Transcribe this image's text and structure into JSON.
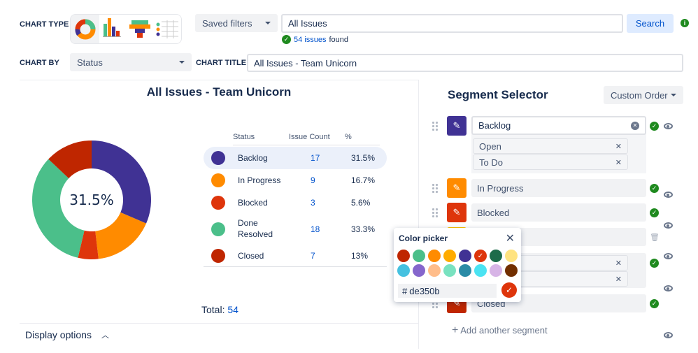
{
  "toolbar": {
    "chart_type_label": "CHART TYPE",
    "chart_by_label": "CHART BY",
    "chart_by_value": "Status",
    "chart_title_label": "CHART TITLE",
    "chart_title_value": "All Issues - Team Unicorn",
    "saved_filters": "Saved filters",
    "query": "All Issues",
    "search": "Search",
    "found_count": "54 issues",
    "found_suffix": "found",
    "chart_types": [
      "donut",
      "bar",
      "funnel",
      "table"
    ]
  },
  "chart": {
    "title": "All Issues - Team Unicorn",
    "center_label": "31.5%",
    "total_label": "Total:",
    "total_value": "54",
    "headers": [
      "Status",
      "Issue Count",
      "%"
    ],
    "rows": [
      {
        "status": "Backlog",
        "count": "17",
        "pct": "31.5%",
        "color": "#403294"
      },
      {
        "status": "In Progress",
        "count": "9",
        "pct": "16.7%",
        "color": "#ff8b00"
      },
      {
        "status": "Blocked",
        "count": "3",
        "pct": "5.6%",
        "color": "#de350b"
      },
      {
        "status": "Done",
        "status2": "Resolved",
        "count": "18",
        "pct": "33.3%",
        "color": "#4bbf8a"
      },
      {
        "status": "Closed",
        "count": "7",
        "pct": "13%",
        "color": "#bf2600"
      }
    ]
  },
  "chart_data": {
    "type": "pie",
    "title": "All Issues - Team Unicorn",
    "categories": [
      "Backlog",
      "In Progress",
      "Blocked",
      "Done / Resolved",
      "Closed"
    ],
    "values": [
      17,
      9,
      3,
      18,
      7
    ],
    "colors": [
      "#403294",
      "#ff8b00",
      "#de350b",
      "#4bbf8a",
      "#bf2600"
    ]
  },
  "display_options": "Display options",
  "segments": {
    "title": "Segment Selector",
    "order": "Custom Order",
    "add": "Add another segment",
    "items": [
      {
        "label": "Backlog",
        "color": "#403294",
        "chips": [
          "Open",
          "To Do"
        ]
      },
      {
        "label": "In Progress",
        "color": "#ff8b00"
      },
      {
        "label": "Blocked",
        "color": "#de350b"
      },
      {
        "label": "",
        "color": "#ffc400"
      },
      {
        "label": "",
        "color": "#4bbf8a"
      },
      {
        "label": "Closed",
        "color": "#bf2600"
      }
    ]
  },
  "picker": {
    "title": "Color picker",
    "hex": "de350b",
    "hash": "#",
    "colors": [
      "#bf2600",
      "#4bbf8a",
      "#ff8b00",
      "#ffab00",
      "#403294",
      "#de350b",
      "#1d6b4a",
      "#ffe380",
      "#45c1e0",
      "#8566cc",
      "#ffbd8a",
      "#79e2c0",
      "#2a8ba6",
      "#4be3f2",
      "#d7b4e6",
      "#722f00"
    ],
    "selected": 5
  }
}
